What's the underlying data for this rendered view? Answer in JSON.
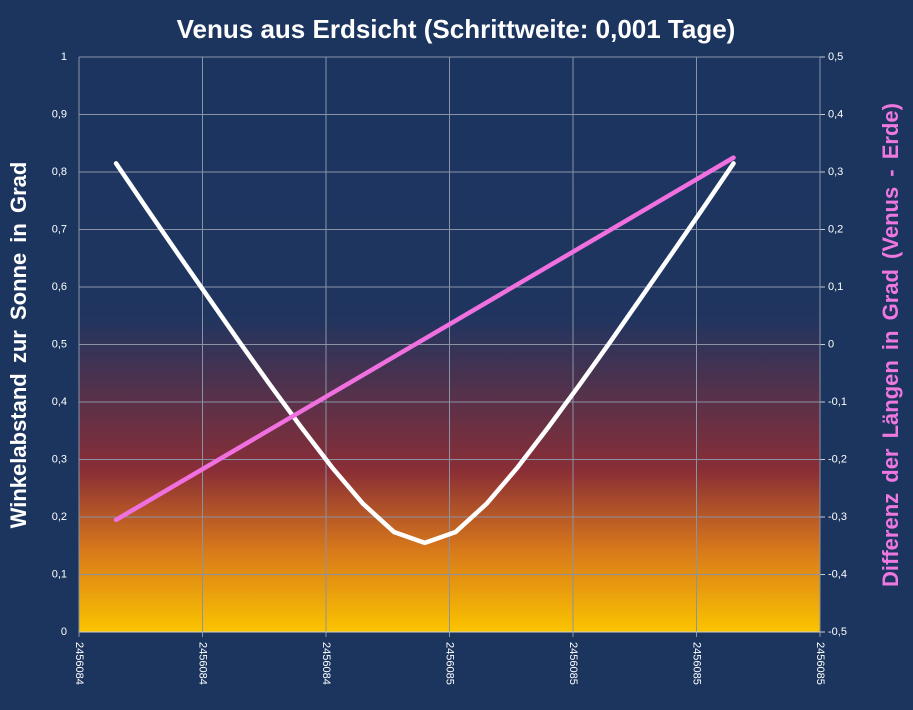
{
  "chart_data": {
    "type": "line",
    "title": "Venus aus Erdsicht (Schrittweite: 0,001 Tage)",
    "y_label": "Winkelabstand zur Sonne in Grad",
    "y2_label": "Differenz der Längen in Grad (Venus - Erde)",
    "xlim": [
      2456084.2,
      2456084.8
    ],
    "xticks": [
      {
        "value": 2456084.2,
        "label": "2456084"
      },
      {
        "value": 2456084.3,
        "label": "2456084"
      },
      {
        "value": 2456084.4,
        "label": "2456084"
      },
      {
        "value": 2456084.5,
        "label": "2456085"
      },
      {
        "value": 2456084.6,
        "label": "2456085"
      },
      {
        "value": 2456084.7,
        "label": "2456085"
      },
      {
        "value": 2456084.8,
        "label": "2456085"
      }
    ],
    "ylim": [
      0,
      1
    ],
    "yticks": [
      0,
      {
        "value": 0.1,
        "label": "0,1"
      },
      {
        "value": 0.2,
        "label": "0,2"
      },
      {
        "value": 0.3,
        "label": "0,3"
      },
      {
        "value": 0.4,
        "label": "0,4"
      },
      {
        "value": 0.5,
        "label": "0,5"
      },
      {
        "value": 0.6,
        "label": "0,6"
      },
      {
        "value": 0.7,
        "label": "0,7"
      },
      {
        "value": 0.8,
        "label": "0,8"
      },
      {
        "value": 0.9,
        "label": "0,9"
      },
      1
    ],
    "y2lim": [
      -0.5,
      0.5
    ],
    "y2ticks": [
      {
        "value": -0.5,
        "label": "-0,5"
      },
      {
        "value": -0.4,
        "label": "-0,4"
      },
      {
        "value": -0.3,
        "label": "-0,3"
      },
      {
        "value": -0.2,
        "label": "-0,2"
      },
      {
        "value": -0.1,
        "label": "-0,1"
      },
      0,
      {
        "value": 0.1,
        "label": "0,1"
      },
      {
        "value": 0.2,
        "label": "0,2"
      },
      {
        "value": 0.3,
        "label": "0,3"
      },
      {
        "value": 0.4,
        "label": "0,4"
      },
      {
        "value": 0.5,
        "label": "0,5"
      }
    ],
    "grid": true,
    "series": [
      {
        "color": "#ffffff",
        "axis": "y",
        "x": [
          2456084.23,
          2456084.255,
          2456084.28,
          2456084.305,
          2456084.33,
          2456084.355,
          2456084.38,
          2456084.405,
          2456084.43,
          2456084.455,
          2456084.48,
          2456084.505,
          2456084.53,
          2456084.555,
          2456084.58,
          2456084.605,
          2456084.63,
          2456084.655,
          2456084.68,
          2456084.705,
          2456084.73
        ],
        "values": [
          0.815,
          0.736,
          0.658,
          0.581,
          0.504,
          0.429,
          0.356,
          0.286,
          0.223,
          0.174,
          0.155,
          0.174,
          0.223,
          0.286,
          0.356,
          0.429,
          0.504,
          0.581,
          0.658,
          0.736,
          0.815
        ]
      },
      {
        "color": "#f070e0",
        "axis": "y2",
        "x": [
          2456084.23,
          2456084.73
        ],
        "values": [
          -0.305,
          0.325
        ]
      }
    ]
  }
}
